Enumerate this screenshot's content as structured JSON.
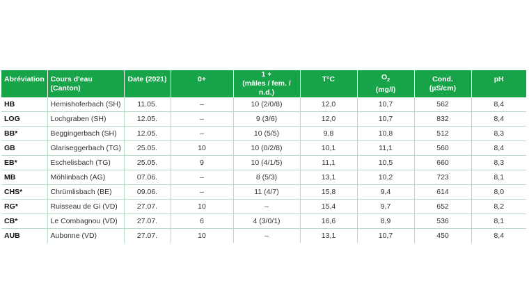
{
  "headers": {
    "abbr": "Abréviation",
    "river_line1": "Cours d'eau",
    "river_line2": "(Canton)",
    "date": "Date (2021)",
    "zero_plus": "0+",
    "one_plus_line1": "1 +",
    "one_plus_line2": "(mâles / fem. / n.d.)",
    "temp": "T°C",
    "o2_main": "O",
    "o2_sub": "2",
    "o2_unit": "(mg/l)",
    "cond_line1": "Cond.",
    "cond_line2": "(µS/cm)",
    "ph": "pH"
  },
  "rows": [
    {
      "abbr": "HB",
      "river": "Hemishoferbach (SH)",
      "date": "11.05.",
      "zero": "–",
      "one": "10 (2/0/8)",
      "t": "12,0",
      "o2": "10,7",
      "cond": "562",
      "ph": "8,4"
    },
    {
      "abbr": "LOG",
      "river": "Lochgraben (SH)",
      "date": "12.05.",
      "zero": "–",
      "one": "9 (3/6)",
      "t": "12,0",
      "o2": "10,7",
      "cond": "832",
      "ph": "8,4"
    },
    {
      "abbr": "BB*",
      "river": "Beggingerbach (SH)",
      "date": "12.05.",
      "zero": "–",
      "one": "10 (5/5)",
      "t": "9,8",
      "o2": "10,8",
      "cond": "512",
      "ph": "8,3"
    },
    {
      "abbr": "GB",
      "river": "Glariseggerbach (TG)",
      "date": "25.05.",
      "zero": "10",
      "one": "10 (0/2/8)",
      "t": "10,1",
      "o2": "11,1",
      "cond": "560",
      "ph": "8,4"
    },
    {
      "abbr": "EB*",
      "river": "Eschelisbach (TG)",
      "date": "25.05.",
      "zero": "9",
      "one": "10 (4/1/5)",
      "t": "11,1",
      "o2": "10,5",
      "cond": "660",
      "ph": "8,3"
    },
    {
      "abbr": "MB",
      "river": "Möhlinbach (AG)",
      "date": "07.06.",
      "zero": "–",
      "one": "8 (5/3)",
      "t": "13,1",
      "o2": "10,2",
      "cond": "723",
      "ph": "8,1"
    },
    {
      "abbr": "CHS*",
      "river": "Chrümlisbach (BE)",
      "date": "09.06.",
      "zero": "–",
      "one": "11 (4/7)",
      "t": "15,8",
      "o2": "9,4",
      "cond": "614",
      "ph": "8,0"
    },
    {
      "abbr": "RG*",
      "river": "Ruisseau de Gi (VD)",
      "date": "27.07.",
      "zero": "10",
      "one": "–",
      "t": "15,4",
      "o2": "9,7",
      "cond": "652",
      "ph": "8,2"
    },
    {
      "abbr": "CB*",
      "river": "Le Combagnou (VD)",
      "date": "27.07.",
      "zero": "6",
      "one": "4 (3/0/1)",
      "t": "16,6",
      "o2": "8,9",
      "cond": "536",
      "ph": "8,1"
    },
    {
      "abbr": "AUB",
      "river": "Aubonne (VD)",
      "date": "27.07.",
      "zero": "10",
      "one": "–",
      "t": "13,1",
      "o2": "10,7",
      "cond": "450",
      "ph": "8,4"
    }
  ]
}
